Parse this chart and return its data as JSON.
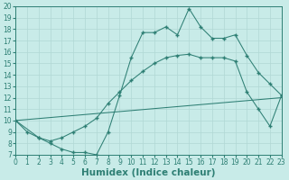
{
  "xlabel": "Humidex (Indice chaleur)",
  "xlim": [
    0,
    23
  ],
  "ylim": [
    7,
    20
  ],
  "xticks": [
    0,
    1,
    2,
    3,
    4,
    5,
    6,
    7,
    8,
    9,
    10,
    11,
    12,
    13,
    14,
    15,
    16,
    17,
    18,
    19,
    20,
    21,
    22,
    23
  ],
  "yticks": [
    7,
    8,
    9,
    10,
    11,
    12,
    13,
    14,
    15,
    16,
    17,
    18,
    19,
    20
  ],
  "line_color": "#2e7f74",
  "bg_color": "#c8ebe8",
  "grid_color": "#b0d8d4",
  "line1_x": [
    0,
    1,
    2,
    3,
    4,
    5,
    6,
    7,
    8,
    9,
    10,
    11,
    12,
    13,
    14,
    15,
    16,
    17,
    18,
    19,
    20,
    21,
    22,
    23
  ],
  "line1_y": [
    10,
    9,
    8.5,
    8,
    7.5,
    7.2,
    7.2,
    7.0,
    9.0,
    12.2,
    15.5,
    17.7,
    17.7,
    18.2,
    17.5,
    19.8,
    18.2,
    17.2,
    17.2,
    17.5,
    15.7,
    14.2,
    13.2,
    12.2
  ],
  "line2_x": [
    0,
    2,
    3,
    4,
    5,
    6,
    7,
    8,
    9,
    10,
    11,
    12,
    13,
    14,
    15,
    16,
    17,
    18,
    19,
    20,
    21,
    22,
    23
  ],
  "line2_y": [
    10,
    8.5,
    8.2,
    8.5,
    9.0,
    9.5,
    10.2,
    11.5,
    12.5,
    13.5,
    14.3,
    15.0,
    15.5,
    15.7,
    15.8,
    15.5,
    15.5,
    15.5,
    15.2,
    12.5,
    11.0,
    9.5,
    12.2
  ],
  "line3_x": [
    0,
    23
  ],
  "line3_y": [
    10,
    12
  ],
  "fontsize_tick": 5.5,
  "fontsize_label": 7.5
}
